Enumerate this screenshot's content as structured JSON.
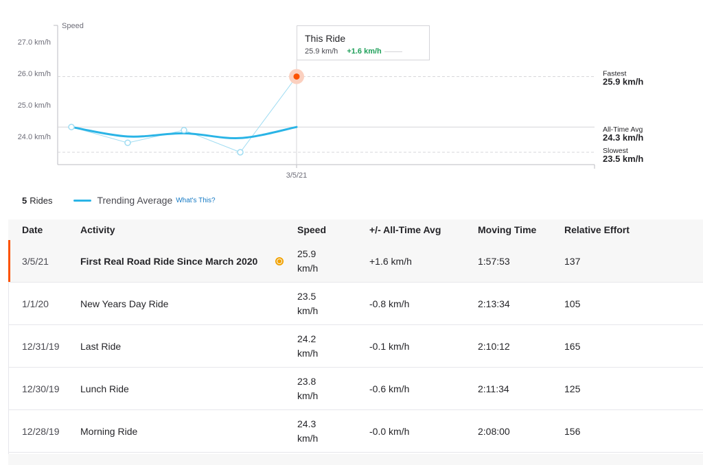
{
  "chart_data": {
    "type": "line",
    "ylabel": "Speed",
    "y_ticks": [
      "27.0 km/h",
      "26.0 km/h",
      "25.0 km/h",
      "24.0 km/h"
    ],
    "y_tick_values": [
      27.0,
      26.0,
      25.0,
      24.0
    ],
    "ylim": [
      23.0,
      27.5
    ],
    "x_tick_label": "3/5/21",
    "points": [
      {
        "date": "12/28/19",
        "speed": 24.3
      },
      {
        "date": "12/30/19",
        "speed": 23.8
      },
      {
        "date": "12/31/19",
        "speed": 24.2
      },
      {
        "date": "1/1/20",
        "speed": 23.5
      },
      {
        "date": "3/5/21",
        "speed": 25.9
      }
    ],
    "trend_values": [
      24.3,
      24.0,
      24.1,
      23.95,
      24.3
    ],
    "highlight_index": 4,
    "reference_lines": [
      {
        "label": "Fastest",
        "value_label": "25.9 km/h",
        "value": 25.9,
        "style": "dashed"
      },
      {
        "label": "All-Time Avg",
        "value_label": "24.3 km/h",
        "value": 24.3,
        "style": "solid"
      },
      {
        "label": "Slowest",
        "value_label": "23.5 km/h",
        "value": 23.5,
        "style": "dashed"
      }
    ],
    "colors": {
      "trend": "#2ab4e6",
      "points": "#9fdcf2",
      "highlight": "#fc5200",
      "highlight_halo": "#fbd0bf",
      "grid": "#e0e0e4",
      "text": "#6d6d78"
    }
  },
  "tooltip": {
    "title": "This Ride",
    "speed": "25.9 km/h",
    "diff": "+1.6 km/h"
  },
  "summary": {
    "count": "5",
    "rides_label": "Rides",
    "legend_label": "Trending Average",
    "whats_this": "What's This?"
  },
  "table": {
    "headers": {
      "date": "Date",
      "activity": "Activity",
      "speed": "Speed",
      "diff": "+/- All-Time Avg",
      "moving_time": "Moving Time",
      "relative_effort": "Relative Effort"
    },
    "rows": [
      {
        "date": "3/5/21",
        "activity": "First Real Road Ride Since March 2020",
        "speed_value": "25.9",
        "speed_unit": "km/h",
        "diff": "+1.6 km/h",
        "moving_time": "1:57:53",
        "relative_effort": "137"
      },
      {
        "date": "1/1/20",
        "activity": "New Years Day Ride",
        "speed_value": "23.5",
        "speed_unit": "km/h",
        "diff": "-0.8 km/h",
        "moving_time": "2:13:34",
        "relative_effort": "105"
      },
      {
        "date": "12/31/19",
        "activity": "Last Ride",
        "speed_value": "24.2",
        "speed_unit": "km/h",
        "diff": "-0.1 km/h",
        "moving_time": "2:10:12",
        "relative_effort": "165"
      },
      {
        "date": "12/30/19",
        "activity": "Lunch Ride",
        "speed_value": "23.8",
        "speed_unit": "km/h",
        "diff": "-0.6 km/h",
        "moving_time": "2:11:34",
        "relative_effort": "125"
      },
      {
        "date": "12/28/19",
        "activity": "Morning Ride",
        "speed_value": "24.3",
        "speed_unit": "km/h",
        "diff": "-0.0 km/h",
        "moving_time": "2:08:00",
        "relative_effort": "156"
      }
    ],
    "selected_index": 0
  },
  "icons": {
    "best_effort_badge": "medal-icon"
  }
}
